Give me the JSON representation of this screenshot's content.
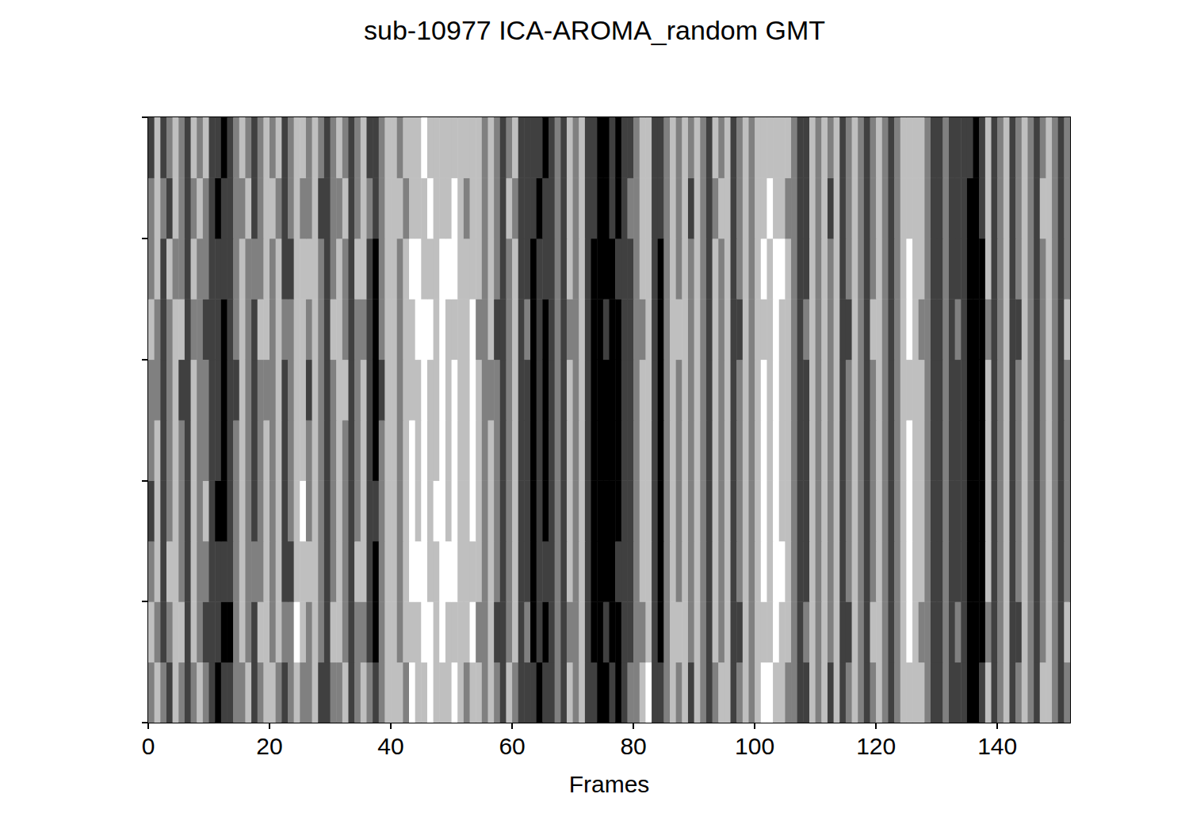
{
  "chart_data": {
    "type": "heatmap",
    "title": "sub-10977 ICA-AROMA_random GMT",
    "x_label": "Frames",
    "xlim": [
      0,
      152
    ],
    "xticks": [
      0,
      20,
      40,
      60,
      80,
      100,
      120,
      140
    ],
    "ylim": [
      0,
      10
    ],
    "yticks": [
      0,
      2,
      4,
      6,
      8,
      10
    ],
    "tick_labels": "x",
    "zlim": [
      -2,
      2
    ],
    "cells": [
      [
        0,
        1,
        0,
        -1,
        1,
        0,
        -1,
        0,
        1,
        0,
        -1,
        -2,
        -1,
        -1,
        0,
        0,
        1,
        -1,
        0,
        1,
        1,
        0,
        -1,
        0,
        1,
        0,
        0,
        1,
        -1,
        -1,
        0,
        0,
        1,
        -1,
        0,
        1,
        0,
        -1,
        0,
        1,
        1,
        1,
        0,
        2,
        1,
        1,
        2,
        1,
        1,
        1,
        2,
        1,
        0,
        1,
        1,
        0,
        1,
        0,
        -1,
        1,
        0,
        -1,
        -1,
        -1,
        -2,
        -1,
        -1,
        0,
        -1,
        1,
        0,
        1,
        -1,
        -1,
        -2,
        -2,
        -1,
        -2,
        -1,
        0,
        0,
        1,
        2,
        -1,
        -1,
        0,
        1,
        0,
        1,
        -1,
        1,
        0,
        -1,
        0,
        1,
        1,
        -1,
        0,
        1,
        0,
        1,
        2,
        2,
        1,
        1,
        0,
        0,
        -1,
        -1,
        1,
        0,
        1,
        -1,
        1,
        -1,
        0,
        1,
        0,
        -1,
        0,
        1,
        0,
        -1,
        0,
        1,
        1,
        1,
        1,
        0,
        -1,
        -1,
        0,
        -1,
        -1,
        -1,
        -2,
        -2,
        -1,
        1,
        -1,
        0,
        1,
        -1,
        0,
        1,
        0,
        -1,
        1,
        1,
        0,
        -1,
        0
      ],
      [
        1,
        0,
        -1,
        0,
        1,
        1,
        -1,
        1,
        0,
        -1,
        -1,
        -1,
        -2,
        -2,
        0,
        1,
        0,
        -1,
        1,
        1,
        0,
        1,
        0,
        0,
        2,
        1,
        0,
        1,
        0,
        -1,
        1,
        1,
        0,
        -1,
        0,
        0,
        -1,
        -2,
        0,
        1,
        1,
        0,
        1,
        1,
        1,
        2,
        2,
        1,
        2,
        1,
        1,
        1,
        1,
        2,
        0,
        0,
        1,
        -1,
        -1,
        0,
        1,
        -1,
        0,
        -2,
        -1,
        -2,
        -1,
        0,
        -1,
        0,
        0,
        1,
        -1,
        -2,
        -2,
        -1,
        -2,
        -2,
        -1,
        -1,
        0,
        0,
        1,
        -1,
        -2,
        0,
        1,
        1,
        1,
        0,
        1,
        0,
        -1,
        1,
        0,
        1,
        -1,
        -1,
        1,
        0,
        1,
        1,
        1,
        2,
        1,
        1,
        0,
        -1,
        0,
        1,
        0,
        1,
        0,
        1,
        -1,
        -1,
        1,
        0,
        -1,
        1,
        1,
        0,
        -1,
        0,
        1,
        2,
        1,
        0,
        0,
        -1,
        -1,
        0,
        -1,
        0,
        -1,
        -2,
        -2,
        -2,
        0,
        -1,
        0,
        1,
        -1,
        -1,
        1,
        0,
        -1,
        0,
        1,
        0,
        -1,
        1
      ],
      [
        0,
        1,
        -1,
        1,
        1,
        0,
        -1,
        1,
        0,
        0,
        -1,
        -1,
        -1,
        -1,
        0,
        1,
        0,
        0,
        0,
        1,
        0,
        1,
        -1,
        -1,
        1,
        1,
        1,
        1,
        0,
        -1,
        0,
        1,
        0,
        -1,
        1,
        1,
        -1,
        -2,
        0,
        1,
        1,
        0,
        1,
        2,
        2,
        2,
        1,
        1,
        2,
        2,
        2,
        1,
        1,
        1,
        1,
        0,
        1,
        0,
        -1,
        0,
        1,
        -1,
        -1,
        -2,
        -1,
        -1,
        -1,
        0,
        -1,
        1,
        0,
        1,
        -1,
        -2,
        -2,
        -2,
        -2,
        -1,
        -1,
        -1,
        0,
        1,
        1,
        -1,
        -2,
        0,
        1,
        0,
        1,
        0,
        1,
        0,
        -1,
        1,
        0,
        1,
        -1,
        0,
        1,
        0,
        1,
        2,
        1,
        2,
        2,
        1,
        0,
        -1,
        -1,
        1,
        0,
        1,
        0,
        1,
        -1,
        0,
        1,
        0,
        -1,
        0,
        1,
        0,
        -1,
        0,
        1,
        2,
        1,
        1,
        0,
        -1,
        -1,
        0,
        -1,
        -1,
        -1,
        -2,
        -2,
        -2,
        1,
        -1,
        0,
        1,
        -1,
        0,
        1,
        0,
        -1,
        0,
        1,
        0,
        -1,
        0
      ],
      [
        -1,
        1,
        -1,
        0,
        1,
        0,
        -1,
        1,
        0,
        1,
        -1,
        -2,
        -2,
        -1,
        0,
        1,
        0,
        -1,
        0,
        1,
        0,
        1,
        -1,
        0,
        1,
        2,
        0,
        1,
        0,
        -1,
        0,
        1,
        0,
        -1,
        0,
        1,
        -1,
        -1,
        0,
        1,
        1,
        0,
        1,
        2,
        1,
        2,
        1,
        2,
        2,
        1,
        2,
        1,
        1,
        2,
        1,
        0,
        1,
        0,
        -1,
        0,
        1,
        -1,
        -1,
        -2,
        -1,
        -2,
        -1,
        0,
        -1,
        1,
        0,
        1,
        -1,
        -2,
        -2,
        -2,
        -2,
        -2,
        -1,
        -1,
        0,
        1,
        1,
        -1,
        -2,
        0,
        1,
        0,
        1,
        0,
        1,
        0,
        -1,
        1,
        0,
        1,
        -1,
        0,
        1,
        0,
        1,
        2,
        1,
        2,
        1,
        1,
        0,
        -1,
        -1,
        1,
        0,
        1,
        0,
        1,
        -1,
        0,
        1,
        0,
        -1,
        0,
        1,
        0,
        -1,
        0,
        1,
        2,
        1,
        1,
        0,
        -1,
        -1,
        0,
        -1,
        -1,
        -1,
        -2,
        -2,
        -2,
        1,
        -1,
        0,
        1,
        -1,
        0,
        1,
        0,
        -1,
        0,
        1,
        0,
        -1,
        0
      ],
      [
        0,
        1,
        -1,
        0,
        1,
        0,
        -1,
        1,
        0,
        0,
        -1,
        -1,
        -2,
        -1,
        0,
        1,
        0,
        -1,
        0,
        1,
        0,
        1,
        -1,
        0,
        1,
        1,
        0,
        1,
        0,
        -1,
        0,
        1,
        0,
        -1,
        0,
        1,
        -1,
        -2,
        0,
        1,
        1,
        0,
        1,
        2,
        1,
        2,
        1,
        1,
        2,
        1,
        2,
        1,
        1,
        2,
        1,
        0,
        1,
        0,
        -1,
        0,
        1,
        -1,
        -1,
        -2,
        -1,
        -2,
        -1,
        0,
        -1,
        1,
        0,
        1,
        -1,
        -2,
        -2,
        -2,
        -2,
        -2,
        -1,
        -1,
        0,
        1,
        1,
        -1,
        -2,
        0,
        1,
        0,
        1,
        0,
        1,
        0,
        -1,
        1,
        0,
        1,
        -1,
        0,
        1,
        0,
        1,
        2,
        1,
        2,
        1,
        1,
        0,
        -1,
        -1,
        1,
        0,
        1,
        0,
        1,
        -1,
        0,
        1,
        0,
        -1,
        0,
        1,
        0,
        -1,
        0,
        1,
        2,
        1,
        1,
        0,
        -1,
        -1,
        0,
        -1,
        -1,
        -1,
        -2,
        -2,
        -2,
        1,
        -1,
        0,
        1,
        -1,
        0,
        1,
        0,
        -1,
        0,
        1,
        0,
        -1,
        0
      ],
      [
        0,
        0,
        -1,
        0,
        1,
        -1,
        -1,
        1,
        0,
        0,
        -1,
        -1,
        -2,
        -1,
        -1,
        1,
        0,
        -1,
        0,
        0,
        0,
        1,
        -1,
        0,
        1,
        1,
        -1,
        1,
        0,
        -1,
        0,
        1,
        1,
        -1,
        0,
        1,
        -1,
        -2,
        -1,
        1,
        1,
        0,
        1,
        1,
        1,
        2,
        1,
        1,
        2,
        1,
        2,
        1,
        1,
        2,
        1,
        0,
        0,
        0,
        -1,
        0,
        1,
        -1,
        -1,
        -2,
        -1,
        -2,
        -1,
        0,
        -1,
        1,
        0,
        1,
        -1,
        -2,
        -2,
        -2,
        -2,
        -2,
        -1,
        -1,
        0,
        1,
        1,
        -1,
        -2,
        0,
        1,
        0,
        1,
        0,
        1,
        0,
        -1,
        1,
        0,
        1,
        -1,
        0,
        1,
        0,
        1,
        2,
        1,
        2,
        1,
        1,
        0,
        -1,
        -1,
        1,
        0,
        1,
        0,
        1,
        -1,
        0,
        1,
        0,
        -1,
        0,
        1,
        0,
        -1,
        0,
        1,
        1,
        1,
        1,
        0,
        -1,
        -1,
        0,
        -1,
        -1,
        -1,
        -2,
        -2,
        -2,
        1,
        -1,
        0,
        1,
        -1,
        0,
        1,
        0,
        -1,
        0,
        1,
        0,
        -1,
        0
      ],
      [
        1,
        0,
        -1,
        0,
        1,
        1,
        -1,
        0,
        0,
        -1,
        -1,
        -1,
        -2,
        -1,
        0,
        1,
        0,
        -1,
        1,
        1,
        0,
        1,
        0,
        0,
        1,
        1,
        0,
        1,
        0,
        -1,
        1,
        1,
        0,
        -1,
        0,
        0,
        -1,
        -2,
        0,
        1,
        1,
        0,
        1,
        1,
        2,
        2,
        2,
        1,
        2,
        1,
        1,
        1,
        1,
        2,
        0,
        0,
        1,
        -1,
        -1,
        0,
        1,
        -1,
        0,
        -2,
        -1,
        -2,
        -1,
        0,
        -1,
        0,
        0,
        1,
        -1,
        -2,
        -2,
        -1,
        -2,
        -2,
        -1,
        -1,
        0,
        0,
        1,
        -1,
        -2,
        0,
        1,
        1,
        1,
        0,
        1,
        0,
        -1,
        1,
        0,
        1,
        -1,
        -1,
        1,
        0,
        1,
        1,
        1,
        2,
        1,
        1,
        0,
        -1,
        0,
        1,
        0,
        1,
        0,
        1,
        -1,
        -1,
        1,
        0,
        -1,
        1,
        1,
        0,
        -1,
        0,
        1,
        2,
        1,
        0,
        0,
        -1,
        -1,
        0,
        -1,
        0,
        -1,
        -2,
        -2,
        -2,
        0,
        -1,
        0,
        1,
        -1,
        -1,
        1,
        0,
        -1,
        0,
        1,
        0,
        -1,
        1
      ],
      [
        0,
        1,
        -1,
        1,
        0,
        0,
        -1,
        1,
        0,
        0,
        -1,
        -1,
        -1,
        -1,
        0,
        1,
        0,
        0,
        0,
        1,
        0,
        1,
        -1,
        -1,
        1,
        1,
        1,
        1,
        0,
        -1,
        0,
        1,
        0,
        -1,
        1,
        1,
        -1,
        -2,
        0,
        1,
        1,
        0,
        1,
        2,
        2,
        1,
        1,
        1,
        2,
        2,
        2,
        1,
        1,
        1,
        1,
        0,
        1,
        0,
        -1,
        0,
        1,
        -1,
        -1,
        -2,
        -1,
        -1,
        -1,
        0,
        -1,
        1,
        0,
        1,
        -1,
        -2,
        -2,
        -2,
        -2,
        -1,
        -1,
        -1,
        0,
        1,
        1,
        -1,
        -2,
        0,
        1,
        0,
        1,
        0,
        1,
        0,
        -1,
        1,
        0,
        1,
        -1,
        0,
        1,
        0,
        1,
        2,
        1,
        2,
        2,
        1,
        0,
        -1,
        -1,
        1,
        0,
        1,
        0,
        1,
        -1,
        0,
        1,
        0,
        -1,
        0,
        1,
        0,
        -1,
        0,
        1,
        2,
        1,
        1,
        0,
        -1,
        -1,
        0,
        -1,
        -1,
        -1,
        -2,
        -2,
        -2,
        1,
        -1,
        0,
        1,
        -1,
        0,
        1,
        0,
        -1,
        0,
        1,
        0,
        -1,
        0
      ],
      [
        0,
        1,
        0,
        -1,
        1,
        0,
        -1,
        0,
        1,
        0,
        -1,
        -2,
        -1,
        -1,
        0,
        0,
        1,
        -1,
        0,
        1,
        1,
        0,
        -1,
        0,
        1,
        0,
        0,
        1,
        -1,
        -1,
        0,
        0,
        1,
        -1,
        0,
        1,
        0,
        -1,
        0,
        1,
        1,
        1,
        0,
        1,
        1,
        1,
        2,
        1,
        1,
        1,
        2,
        1,
        0,
        1,
        1,
        0,
        1,
        0,
        -1,
        1,
        0,
        -1,
        -1,
        -1,
        -2,
        -1,
        -1,
        0,
        -1,
        1,
        0,
        1,
        -1,
        -1,
        -2,
        -2,
        -1,
        -2,
        -1,
        0,
        0,
        1,
        1,
        -1,
        -1,
        0,
        1,
        0,
        1,
        -1,
        1,
        0,
        -1,
        0,
        1,
        1,
        -1,
        0,
        1,
        0,
        1,
        1,
        2,
        1,
        1,
        0,
        0,
        -1,
        -1,
        1,
        0,
        1,
        -1,
        1,
        -1,
        0,
        1,
        0,
        -1,
        0,
        1,
        0,
        -1,
        0,
        1,
        1,
        1,
        1,
        0,
        -1,
        -1,
        0,
        -1,
        -1,
        -1,
        -2,
        -2,
        -1,
        1,
        -1,
        0,
        1,
        -1,
        0,
        1,
        0,
        -1,
        1,
        1,
        0,
        -1,
        0
      ],
      [
        -1,
        1,
        -1,
        0,
        1,
        0,
        -1,
        1,
        0,
        1,
        -1,
        -1,
        -2,
        -1,
        0,
        1,
        0,
        -1,
        0,
        1,
        0,
        1,
        -1,
        0,
        1,
        1,
        0,
        1,
        0,
        -1,
        0,
        1,
        0,
        -1,
        0,
        1,
        -1,
        -1,
        0,
        1,
        1,
        0,
        1,
        1,
        1,
        2,
        1,
        1,
        1,
        1,
        1,
        1,
        1,
        1,
        1,
        0,
        1,
        0,
        -1,
        0,
        1,
        -1,
        -1,
        -1,
        -1,
        -2,
        -1,
        0,
        -1,
        1,
        0,
        1,
        -1,
        -1,
        -2,
        -2,
        -1,
        -2,
        -1,
        -1,
        0,
        1,
        1,
        -1,
        -1,
        0,
        1,
        0,
        1,
        0,
        1,
        0,
        -1,
        1,
        0,
        1,
        -1,
        0,
        1,
        0,
        1,
        1,
        1,
        1,
        1,
        1,
        0,
        -1,
        -1,
        1,
        0,
        1,
        0,
        1,
        -1,
        0,
        1,
        0,
        -1,
        0,
        1,
        0,
        -1,
        0,
        1,
        1,
        1,
        1,
        0,
        -1,
        -1,
        0,
        -1,
        -1,
        -1,
        -1,
        -2,
        -1,
        1,
        -1,
        0,
        1,
        -1,
        0,
        1,
        0,
        -1,
        0,
        1,
        0,
        -1,
        0
      ]
    ]
  }
}
